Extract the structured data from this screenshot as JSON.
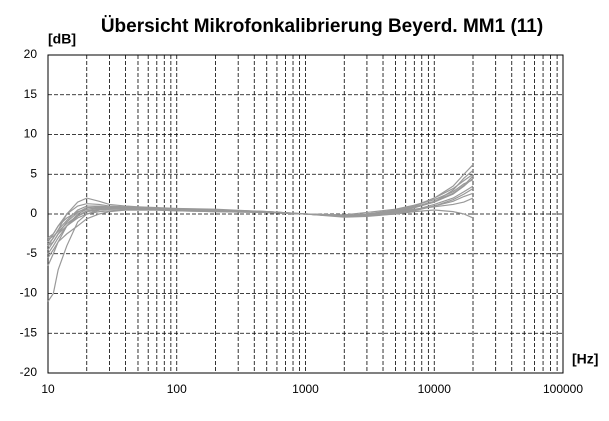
{
  "chart_data": {
    "type": "line",
    "title": "Übersicht Mikrofonkalibrierung Beyerd. MM1 (11)",
    "y_label": "[dB]",
    "x_label": "[Hz]",
    "x_scale": "log",
    "xlim": [
      10,
      100000
    ],
    "xticks": [
      10,
      100,
      1000,
      10000,
      100000
    ],
    "xminorticks": [
      20,
      30,
      40,
      50,
      60,
      70,
      80,
      90,
      200,
      300,
      400,
      500,
      600,
      700,
      800,
      900,
      2000,
      3000,
      4000,
      5000,
      6000,
      7000,
      8000,
      9000,
      20000,
      30000,
      40000,
      50000,
      60000,
      70000,
      80000,
      90000
    ],
    "ylim": [
      -20,
      20
    ],
    "yticks": [
      -20,
      -15,
      -10,
      -5,
      0,
      5,
      10,
      15,
      20
    ],
    "grid": true,
    "x": [
      10,
      11,
      12,
      14,
      17,
      20,
      25,
      30,
      40,
      50,
      70,
      100,
      200,
      500,
      1000,
      2000,
      3000,
      5000,
      7000,
      10000,
      14000,
      17000,
      20000
    ],
    "series": [
      {
        "color": "#999999",
        "values": [
          -11,
          -10,
          -7,
          -4,
          -1,
          0,
          0.5,
          0.6,
          0.7,
          0.7,
          0.6,
          0.5,
          0.4,
          0.2,
          0,
          -0.3,
          -0.2,
          0.2,
          0.8,
          1.5,
          3,
          4.5,
          5.5
        ]
      },
      {
        "color": "#999999",
        "values": [
          -6.5,
          -5,
          -3.5,
          -1.5,
          0,
          0.6,
          0.8,
          0.8,
          0.8,
          0.8,
          0.7,
          0.6,
          0.5,
          0.3,
          0,
          -0.2,
          0,
          0.5,
          1,
          2,
          3.5,
          5,
          6.2
        ]
      },
      {
        "color": "#999999",
        "values": [
          -4,
          -3,
          -2,
          0,
          1.5,
          2,
          1.6,
          1.2,
          1,
          0.9,
          0.8,
          0.7,
          0.6,
          0.3,
          0,
          -0.3,
          -0.1,
          0.3,
          0.8,
          1.5,
          2.5,
          3.5,
          4.5
        ]
      },
      {
        "color": "#999999",
        "values": [
          -3.5,
          -2.5,
          -1.5,
          0,
          1,
          1.3,
          1.2,
          1,
          0.9,
          0.8,
          0.7,
          0.6,
          0.5,
          0.3,
          0,
          -0.4,
          -0.3,
          0,
          0.3,
          0.5,
          0.3,
          0,
          -0.5
        ]
      },
      {
        "color": "#999999",
        "values": [
          -3,
          -2.5,
          -1.5,
          -0.5,
          0.3,
          0.6,
          0.7,
          0.7,
          0.7,
          0.7,
          0.6,
          0.5,
          0.4,
          0.2,
          0,
          -0.2,
          0,
          0.4,
          0.9,
          1.6,
          2.6,
          3.6,
          4.8
        ]
      },
      {
        "color": "#999999",
        "values": [
          -5,
          -4,
          -3,
          -1.5,
          -0.3,
          0.3,
          0.5,
          0.6,
          0.6,
          0.6,
          0.5,
          0.5,
          0.4,
          0.2,
          0,
          -0.3,
          -0.2,
          0,
          0.4,
          1,
          1.8,
          2.5,
          3.2
        ]
      },
      {
        "color": "#999999",
        "values": [
          -4,
          -3.5,
          -2.5,
          -1.5,
          -0.5,
          0,
          0.3,
          0.4,
          0.5,
          0.5,
          0.5,
          0.4,
          0.3,
          0.2,
          0,
          -0.1,
          0.2,
          0.6,
          1.1,
          1.8,
          2.8,
          3.8,
          4.3
        ]
      },
      {
        "color": "#999999",
        "values": [
          -3.8,
          -3,
          -2,
          -0.8,
          0.5,
          1,
          1,
          0.9,
          0.8,
          0.7,
          0.6,
          0.6,
          0.5,
          0.3,
          0,
          -0.3,
          -0.2,
          0.1,
          0.5,
          1.2,
          2,
          2.8,
          3.5
        ]
      },
      {
        "color": "#999999",
        "values": [
          -4.5,
          -3.5,
          -2.5,
          -1,
          0.2,
          0.8,
          0.9,
          0.8,
          0.7,
          0.7,
          0.6,
          0.5,
          0.4,
          0.2,
          0,
          -0.2,
          0,
          0.3,
          0.6,
          0.9,
          1.2,
          1.5,
          2
        ]
      },
      {
        "color": "#999999",
        "values": [
          -3.2,
          -2.8,
          -2.2,
          -1.2,
          -0.2,
          0.4,
          0.6,
          0.7,
          0.7,
          0.6,
          0.6,
          0.5,
          0.4,
          0.2,
          0,
          -0.3,
          -0.1,
          0.4,
          1,
          2,
          3.2,
          4.2,
          5
        ]
      },
      {
        "color": "#999999",
        "values": [
          -5.5,
          -4.5,
          -3.5,
          -2.5,
          -1.5,
          -0.6,
          0,
          0.3,
          0.5,
          0.5,
          0.5,
          0.4,
          0.3,
          0.2,
          0,
          -0.2,
          -0.1,
          0.2,
          0.5,
          1,
          1.6,
          2.2,
          2.6
        ]
      }
    ]
  }
}
